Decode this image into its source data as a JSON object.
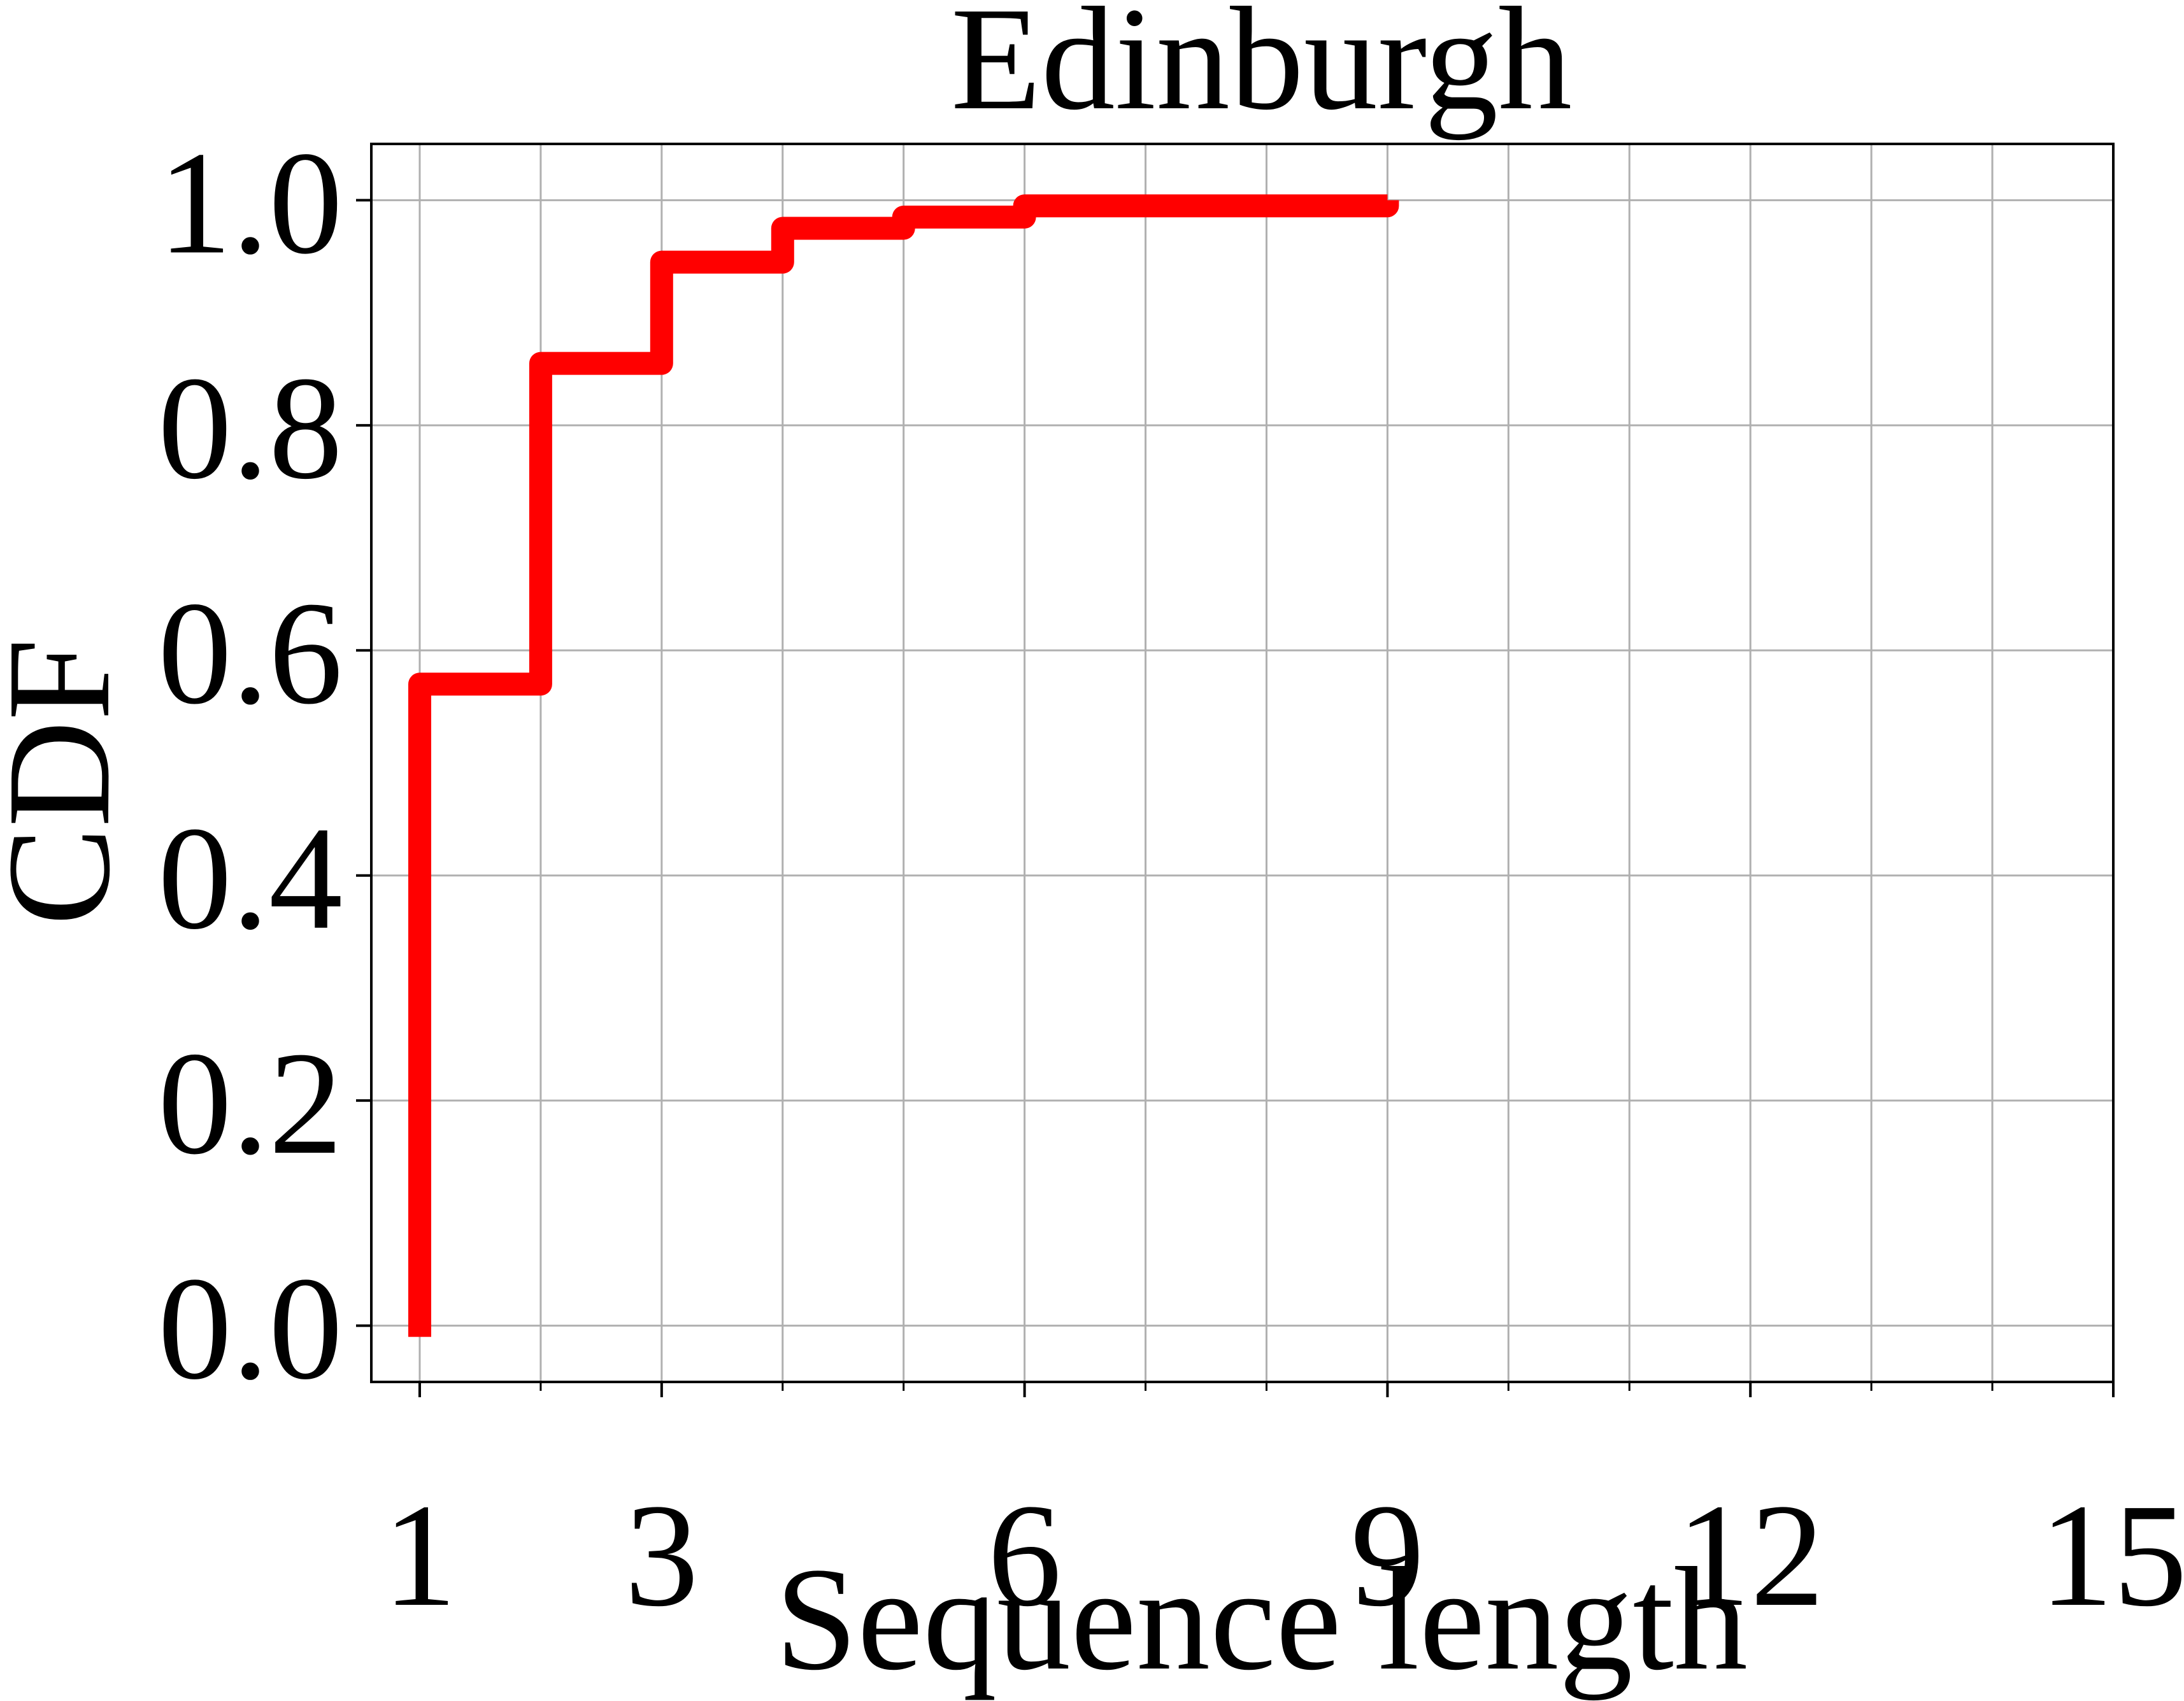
{
  "chart_data": {
    "type": "line",
    "title": "Edinburgh",
    "xlabel": "Sequence length",
    "ylabel": "CDF",
    "xlim": [
      0.6,
      15
    ],
    "ylim": [
      -0.05,
      1.05
    ],
    "xticks": [
      1,
      3,
      6,
      9,
      12,
      15
    ],
    "xtick_labels": [
      "1",
      "3",
      "6",
      "9",
      "12",
      "15"
    ],
    "x_minor_ticks": [
      2,
      4,
      5,
      7,
      8,
      10,
      11,
      13,
      14
    ],
    "yticks": [
      0.0,
      0.2,
      0.4,
      0.6,
      0.8,
      1.0
    ],
    "ytick_labels": [
      "0.0",
      "0.2",
      "0.4",
      "0.6",
      "0.8",
      "1.0"
    ],
    "grid": true,
    "series": [
      {
        "color": "#ff0000",
        "step": true,
        "x": [
          1,
          2,
          3,
          4,
          5,
          6,
          9
        ],
        "y": [
          0.57,
          0.855,
          0.945,
          0.975,
          0.985,
          0.995,
          1.0
        ],
        "start": [
          1,
          -0.01
        ]
      }
    ]
  }
}
